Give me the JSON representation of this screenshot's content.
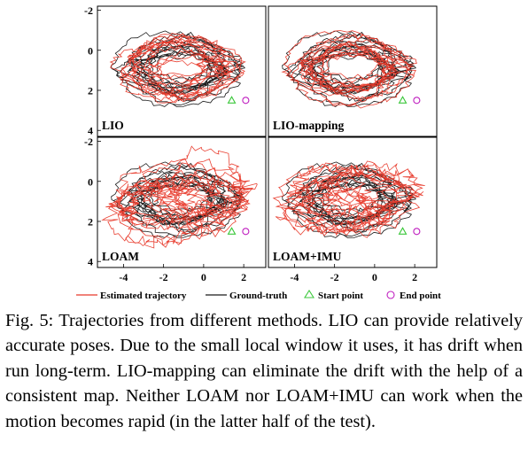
{
  "figure": {
    "panels": [
      {
        "label": "LIO"
      },
      {
        "label": "LIO-mapping"
      },
      {
        "label": "LOAM"
      },
      {
        "label": "LOAM+IMU"
      }
    ],
    "y_ticks": [
      "-2",
      "0",
      "2",
      "4"
    ],
    "x_ticks": [
      "-4",
      "-2",
      "0",
      "2"
    ],
    "legend": [
      {
        "label": "Estimated trajectory",
        "color": "#e8392a",
        "marker": "line"
      },
      {
        "label": "Ground-truth",
        "color": "#1a1a1a",
        "marker": "line"
      },
      {
        "label": "Start point",
        "color": "#3cc83c",
        "marker": "triangle"
      },
      {
        "label": "End point",
        "color": "#c020c0",
        "marker": "circle"
      }
    ]
  },
  "caption": {
    "label": "Fig. 5:",
    "text": "Trajectories from different methods. LIO can provide relatively accurate poses. Due to the small local window it uses, it has drift when run long-term. LIO-mapping can eliminate the drift with the help of a consistent map. Nei­ther LOAM nor LOAM+IMU can work when the motion becomes rapid (in the latter half of the test)."
  }
}
